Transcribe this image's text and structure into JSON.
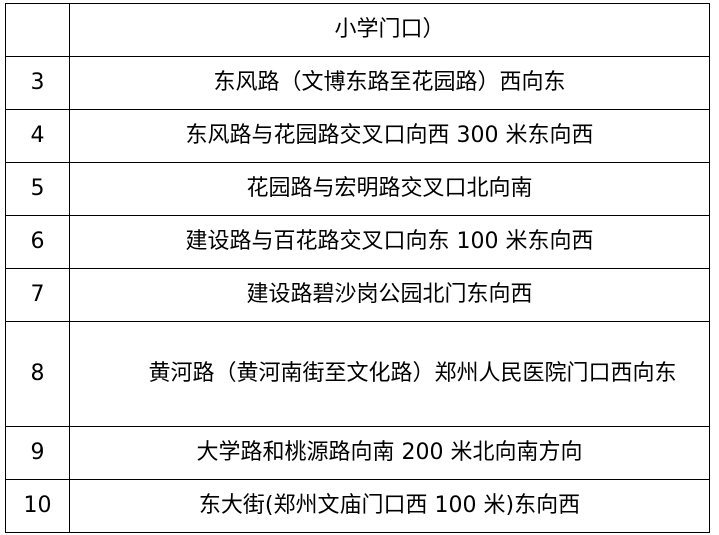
{
  "table": {
    "rows": [
      {
        "num": "",
        "desc": "小学门口）"
      },
      {
        "num": "3",
        "desc": "东风路（文博东路至花园路）西向东"
      },
      {
        "num": "4",
        "desc": "东风路与花园路交叉口向西 300 米东向西"
      },
      {
        "num": "5",
        "desc": "花园路与宏明路交叉口北向南"
      },
      {
        "num": "6",
        "desc": "建设路与百花路交叉口向东 100 米东向西"
      },
      {
        "num": "7",
        "desc": "建设路碧沙岗公园北门东向西"
      },
      {
        "num": "8",
        "desc": "黄河路（黄河南街至文化路）郑州人民医院门口西向东"
      },
      {
        "num": "9",
        "desc": "大学路和桃源路向南 200 米北向南方向"
      },
      {
        "num": "10",
        "desc": "东大街(郑州文庙门口西 100 米)东向西"
      }
    ]
  }
}
